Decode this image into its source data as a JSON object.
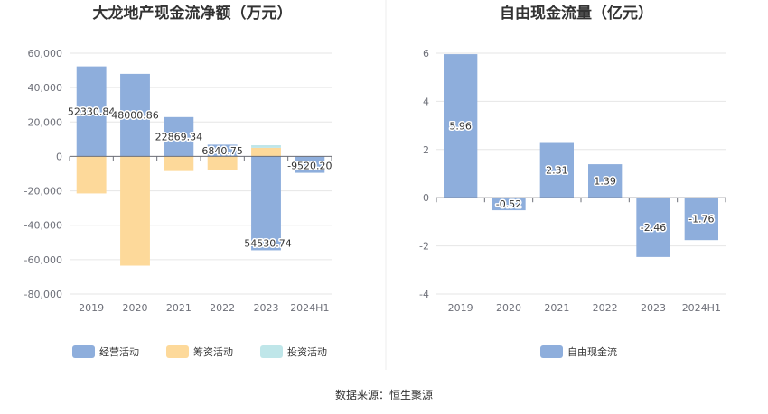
{
  "source": "数据来源：恒生聚源",
  "chart_data": [
    {
      "type": "bar",
      "stacked": true,
      "title": "大龙地产现金流净额（万元）",
      "categories": [
        "2019",
        "2020",
        "2021",
        "2022",
        "2023",
        "2024H1"
      ],
      "ylim": [
        -80000,
        60000
      ],
      "yticks": [
        60000,
        40000,
        20000,
        0,
        -20000,
        -40000,
        -60000,
        -80000
      ],
      "ytick_labels": [
        "60,000",
        "40,000",
        "20,000",
        "0",
        "-20,000",
        "-40,000",
        "-60,000",
        "-80,000"
      ],
      "grid": true,
      "legend_position": "bottom",
      "series": [
        {
          "name": "经营活动",
          "color": "#8eaedc",
          "values": [
            52330.84,
            48000.86,
            22869.34,
            6840.75,
            -54530.74,
            -9520.2
          ],
          "labels": [
            "52330.84",
            "48000.86",
            "22869.34",
            "6840.75",
            "-54530.74",
            "-9520.20"
          ]
        },
        {
          "name": "筹资活动",
          "color": "#fdd99a",
          "values": [
            -21500,
            -63500,
            -8500,
            -8000,
            5000,
            0
          ]
        },
        {
          "name": "投资活动",
          "color": "#bfe6e9",
          "values": [
            0,
            0,
            0,
            0,
            1500,
            0
          ]
        }
      ]
    },
    {
      "type": "bar",
      "title": "自由现金流量（亿元）",
      "categories": [
        "2019",
        "2020",
        "2021",
        "2022",
        "2023",
        "2024H1"
      ],
      "ylim": [
        -4,
        6
      ],
      "yticks": [
        6,
        4,
        2,
        0,
        -2,
        -4
      ],
      "ytick_labels": [
        "6",
        "4",
        "2",
        "0",
        "-2",
        "-4"
      ],
      "grid": true,
      "legend_position": "bottom",
      "series": [
        {
          "name": "自由现金流",
          "color": "#8eaedc",
          "values": [
            5.96,
            -0.52,
            2.31,
            1.39,
            -2.46,
            -1.76
          ],
          "labels": [
            "5.96",
            "-0.52",
            "2.31",
            "1.39",
            "-2.46",
            "-1.76"
          ]
        }
      ]
    }
  ]
}
